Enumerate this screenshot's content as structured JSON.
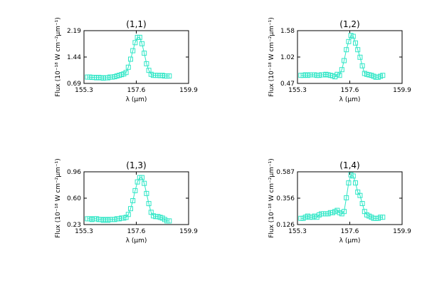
{
  "accent_color": "#2ee6c6",
  "chart_data": [
    {
      "type": "line",
      "title": "(1,1)",
      "xlabel": "λ (μm)",
      "ylabel": "Flux (10⁻¹⁸ W cm⁻²μm⁻¹)",
      "xlim": [
        155.3,
        159.9
      ],
      "ylim": [
        0.69,
        2.19
      ],
      "x_ticks": [
        "155.3",
        "157.6",
        "159.9"
      ],
      "y_ticks": [
        "0.69",
        "1.44",
        "2.19"
      ],
      "marker": "square",
      "x": [
        155.45,
        155.55,
        155.65,
        155.75,
        155.85,
        155.95,
        156.05,
        156.15,
        156.25,
        156.35,
        156.45,
        156.55,
        156.65,
        156.75,
        156.85,
        156.95,
        157.05,
        157.15,
        157.25,
        157.35,
        157.45,
        157.55,
        157.65,
        157.75,
        157.85,
        157.95,
        158.05,
        158.15,
        158.25,
        158.35,
        158.45,
        158.55,
        158.65,
        158.75,
        158.85,
        158.95,
        159.05
      ],
      "values": [
        0.87,
        0.87,
        0.86,
        0.86,
        0.85,
        0.86,
        0.85,
        0.84,
        0.85,
        0.85,
        0.87,
        0.87,
        0.88,
        0.9,
        0.92,
        0.94,
        0.96,
        1.0,
        1.15,
        1.38,
        1.62,
        1.85,
        2.0,
        2.0,
        1.82,
        1.55,
        1.25,
        1.06,
        0.95,
        0.92,
        0.92,
        0.92,
        0.91,
        0.92,
        0.9,
        0.9,
        0.9
      ]
    },
    {
      "type": "line",
      "title": "(1,2)",
      "xlabel": "λ (μm)",
      "ylabel": "Flux (10⁻¹⁸ W cm⁻²μm⁻¹)",
      "xlim": [
        155.3,
        159.9
      ],
      "ylim": [
        0.47,
        1.58
      ],
      "x_ticks": [
        "155.3",
        "157.6",
        "159.9"
      ],
      "y_ticks": [
        "0.47",
        "1.02",
        "1.58"
      ],
      "marker": "square",
      "x": [
        155.45,
        155.55,
        155.65,
        155.75,
        155.85,
        155.95,
        156.05,
        156.15,
        156.25,
        156.35,
        156.45,
        156.55,
        156.65,
        156.75,
        156.85,
        156.95,
        157.05,
        157.15,
        157.25,
        157.35,
        157.45,
        157.55,
        157.65,
        157.75,
        157.85,
        157.95,
        158.05,
        158.15,
        158.25,
        158.35,
        158.45,
        158.55,
        158.65,
        158.75,
        158.85,
        158.95,
        159.05
      ],
      "values": [
        0.64,
        0.64,
        0.65,
        0.64,
        0.65,
        0.65,
        0.65,
        0.64,
        0.64,
        0.65,
        0.65,
        0.66,
        0.65,
        0.64,
        0.63,
        0.61,
        0.66,
        0.64,
        0.76,
        0.95,
        1.18,
        1.35,
        1.48,
        1.46,
        1.32,
        1.18,
        1.02,
        0.84,
        0.68,
        0.66,
        0.65,
        0.64,
        0.62,
        0.6,
        0.6,
        0.62,
        0.64
      ]
    },
    {
      "type": "line",
      "title": "(1,3)",
      "xlabel": "λ (μm)",
      "ylabel": "Flux (10⁻¹⁸ W cm⁻²μm⁻¹)",
      "xlim": [
        155.3,
        159.9
      ],
      "ylim": [
        0.23,
        0.96
      ],
      "x_ticks": [
        "155.3",
        "157.6",
        "159.9"
      ],
      "y_ticks": [
        "0.23",
        "0.60",
        "0.96"
      ],
      "marker": "square",
      "x": [
        155.45,
        155.55,
        155.65,
        155.75,
        155.85,
        155.95,
        156.05,
        156.15,
        156.25,
        156.35,
        156.45,
        156.55,
        156.65,
        156.75,
        156.85,
        156.95,
        157.05,
        157.15,
        157.25,
        157.35,
        157.45,
        157.55,
        157.65,
        157.75,
        157.85,
        157.95,
        158.05,
        158.15,
        158.25,
        158.35,
        158.45,
        158.55,
        158.65,
        158.75,
        158.85,
        158.95,
        159.05
      ],
      "values": [
        0.31,
        0.31,
        0.3,
        0.31,
        0.31,
        0.3,
        0.3,
        0.29,
        0.3,
        0.29,
        0.3,
        0.3,
        0.3,
        0.31,
        0.31,
        0.32,
        0.32,
        0.33,
        0.37,
        0.45,
        0.56,
        0.7,
        0.82,
        0.88,
        0.88,
        0.8,
        0.66,
        0.52,
        0.4,
        0.35,
        0.34,
        0.34,
        0.33,
        0.32,
        0.3,
        0.28,
        0.28
      ]
    },
    {
      "type": "line",
      "title": "(1,4)",
      "xlabel": "λ (μm)",
      "ylabel": "Flux (10⁻¹⁸ W cm⁻²μm⁻¹)",
      "xlim": [
        155.3,
        159.9
      ],
      "ylim": [
        0.126,
        0.587
      ],
      "x_ticks": [
        "155.3",
        "157.6",
        "159.9"
      ],
      "y_ticks": [
        "0.126",
        "0.356",
        "0.587"
      ],
      "marker": "square",
      "x": [
        155.45,
        155.55,
        155.65,
        155.75,
        155.85,
        155.95,
        156.05,
        156.15,
        156.25,
        156.35,
        156.45,
        156.55,
        156.65,
        156.75,
        156.85,
        156.95,
        157.05,
        157.15,
        157.25,
        157.35,
        157.45,
        157.55,
        157.65,
        157.75,
        157.85,
        157.95,
        158.05,
        158.15,
        158.25,
        158.35,
        158.45,
        158.55,
        158.65,
        158.75,
        158.85,
        158.95,
        159.05
      ],
      "values": [
        0.18,
        0.18,
        0.19,
        0.2,
        0.19,
        0.19,
        0.2,
        0.19,
        0.21,
        0.22,
        0.22,
        0.22,
        0.22,
        0.23,
        0.23,
        0.24,
        0.25,
        0.23,
        0.22,
        0.24,
        0.36,
        0.49,
        0.56,
        0.55,
        0.49,
        0.41,
        0.38,
        0.31,
        0.24,
        0.21,
        0.2,
        0.19,
        0.18,
        0.18,
        0.18,
        0.19,
        0.19
      ]
    }
  ]
}
